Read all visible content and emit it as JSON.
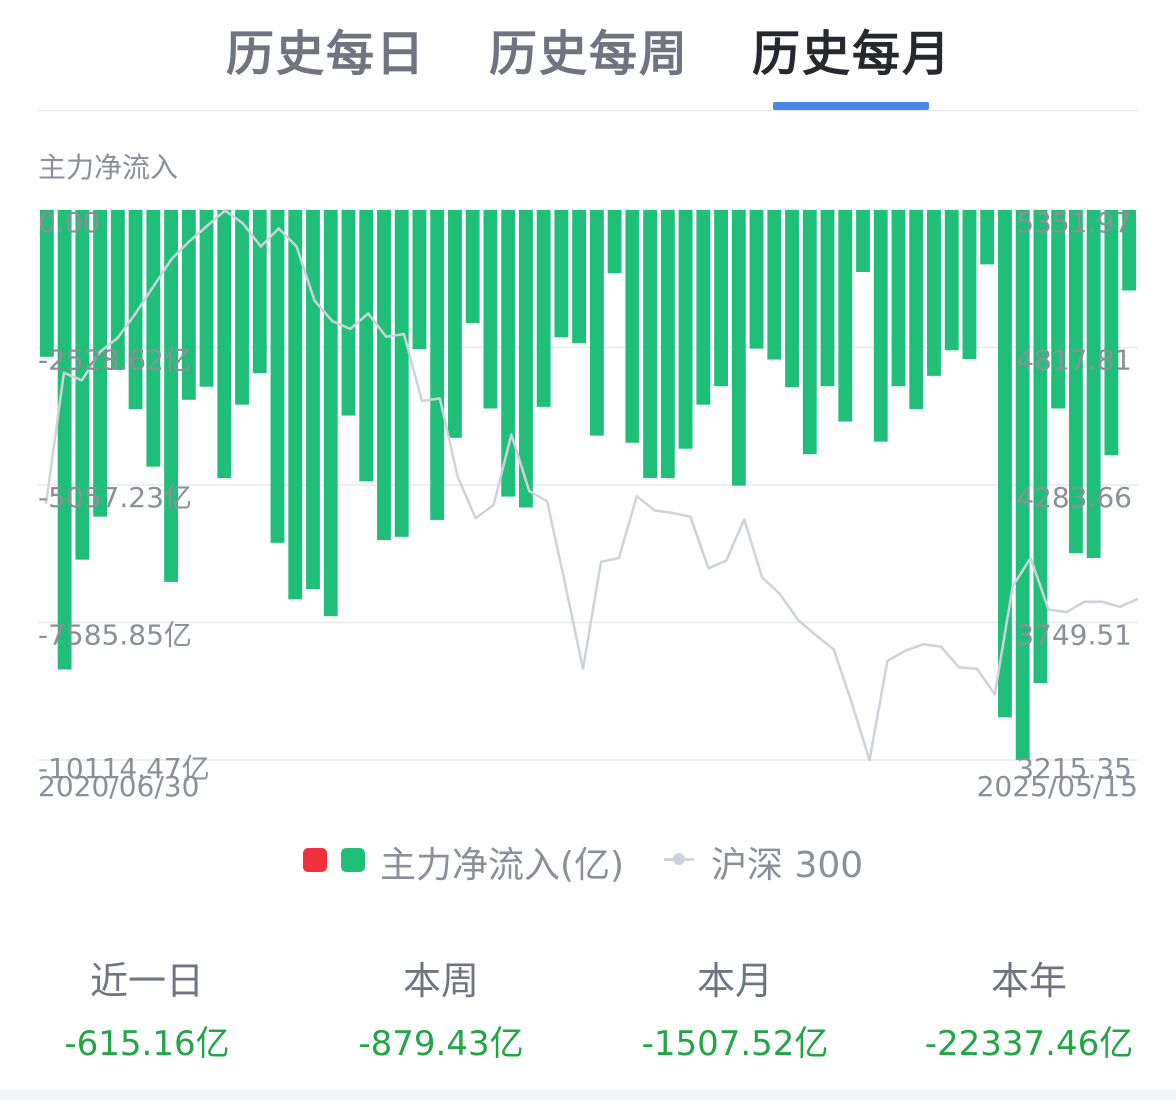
{
  "tabs": [
    {
      "label": "历史每日",
      "active": false
    },
    {
      "label": "历史每周",
      "active": false
    },
    {
      "label": "历史每月",
      "active": true
    }
  ],
  "chart_title": "主力净流入",
  "legend": {
    "bar_label": "主力净流入(亿)",
    "line_label": "沪深 300",
    "colors": {
      "inflow": "#f0303c",
      "outflow": "#1fbf7a",
      "line": "#cfd2dc"
    }
  },
  "stats": [
    {
      "label": "近一日",
      "value": "-615.16亿"
    },
    {
      "label": "本周",
      "value": "-879.43亿"
    },
    {
      "label": "本月",
      "value": "-1507.52亿"
    },
    {
      "label": "本年",
      "value": "-22337.46亿"
    }
  ],
  "chart_data": {
    "type": "bar",
    "title": "主力净流入",
    "x_start": "2020/06/30",
    "x_end": "2025/05/15",
    "left_axis": {
      "ticks": [
        "0.00",
        "-2528.62亿",
        "-5057.23亿",
        "-7585.85亿",
        "-10114.47亿"
      ],
      "min": -10114.47,
      "max": 0
    },
    "right_axis": {
      "ticks": [
        "5351.97",
        "4817.81",
        "4283.66",
        "3749.51",
        "3215.35"
      ],
      "min": 3215.35,
      "max": 5351.97
    },
    "grid": true,
    "series": [
      {
        "name": "主力净流入(亿)",
        "type": "bar",
        "values": [
          -2700,
          -8450,
          -6430,
          -5640,
          -2940,
          -3660,
          -4720,
          -6840,
          -3490,
          -3250,
          -4930,
          -3580,
          -3000,
          -6120,
          -7160,
          -6970,
          -7470,
          -3780,
          -4990,
          -6070,
          -6010,
          -2560,
          -5700,
          -4190,
          -2080,
          -3650,
          -5270,
          -5470,
          -3620,
          -2340,
          -2450,
          -4150,
          -1160,
          -4280,
          -4930,
          -4930,
          -4390,
          -3580,
          -3240,
          -5070,
          -2550,
          -2750,
          -3260,
          -4490,
          -3240,
          -3890,
          -1140,
          -4260,
          -3240,
          -3660,
          -3050,
          -2580,
          -2740,
          -1000,
          -9330,
          -10114,
          -8700,
          -3650,
          -6310,
          -6400,
          -4510,
          -1480
        ]
      },
      {
        "name": "沪深 300",
        "type": "line",
        "values": [
          4210,
          4720,
          4690,
          4800,
          4855,
          4950,
          5055,
          5160,
          5230,
          5290,
          5350,
          5300,
          5210,
          5280,
          5210,
          5000,
          4920,
          4890,
          4950,
          4860,
          4870,
          4610,
          4620,
          4315,
          4155,
          4205,
          4480,
          4260,
          4220,
          3900,
          3570,
          3985,
          4000,
          4240,
          4185,
          4175,
          4160,
          3960,
          3990,
          4150,
          3925,
          3860,
          3760,
          3700,
          3645,
          3440,
          3215,
          3600,
          3640,
          3665,
          3655,
          3575,
          3570,
          3470,
          3890,
          4000,
          3800,
          3790,
          3830,
          3830,
          3810,
          3842
        ]
      }
    ]
  }
}
